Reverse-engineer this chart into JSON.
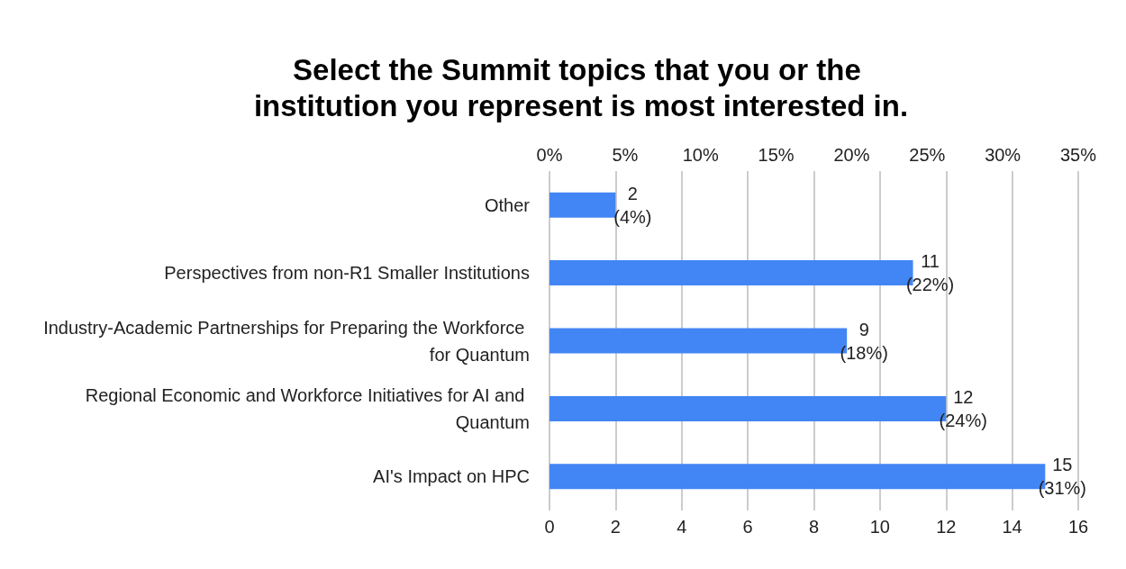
{
  "chart_data": {
    "type": "bar",
    "orientation": "horizontal",
    "title": "Select the Summit topics that you or the institution you represent is most interested in.",
    "categories": [
      "Other",
      "Perspectives from non-R1 Smaller Institutions",
      "Industry-Academic Partnerships for Preparing the Workforce for Quantum",
      "Regional Economic and Workforce Initiatives for AI and Quantum",
      "AI's Impact on HPC"
    ],
    "values": [
      2,
      11,
      9,
      12,
      15
    ],
    "value_labels": [
      "2\n(4%)",
      "11\n(22%)",
      "9\n(18%)",
      "12\n(24%)",
      "15\n(31%)"
    ],
    "color": "#4285f4",
    "xlim": [
      0,
      16
    ],
    "xticks": [
      0,
      2,
      4,
      6,
      8,
      10,
      12,
      14,
      16
    ],
    "x2lim": [
      0,
      35
    ],
    "x2ticks": [
      {
        "value": 0,
        "label": "0%"
      },
      {
        "value": 5,
        "label": "5%"
      },
      {
        "value": 10,
        "label": "10%"
      },
      {
        "value": 15,
        "label": "15%"
      },
      {
        "value": 20,
        "label": "20%"
      },
      {
        "value": 25,
        "label": "25%"
      },
      {
        "value": 30,
        "label": "30%"
      },
      {
        "value": 35,
        "label": "35%"
      }
    ],
    "grid": "x"
  }
}
